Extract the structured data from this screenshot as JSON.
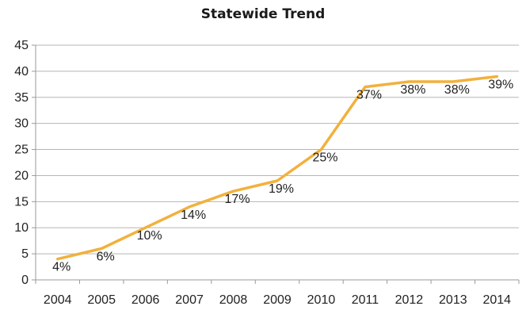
{
  "chart_data": {
    "type": "line",
    "title": "Statewide Trend",
    "xlabel": "",
    "ylabel": "",
    "categories": [
      "2004",
      "2005",
      "2006",
      "2007",
      "2008",
      "2009",
      "2010",
      "2011",
      "2012",
      "2013",
      "2014"
    ],
    "series": [
      {
        "name": "",
        "values": [
          4,
          6,
          10,
          14,
          17,
          19,
          25,
          37,
          38,
          38,
          39
        ],
        "labels": [
          "4%",
          "6%",
          "10%",
          "14%",
          "17%",
          "19%",
          "25%",
          "37%",
          "38%",
          "38%",
          "39%"
        ],
        "color": "#f2b13c"
      }
    ],
    "ylim": [
      0,
      45
    ],
    "yticks": [
      0,
      5,
      10,
      15,
      20,
      25,
      30,
      35,
      40,
      45
    ],
    "grid": true,
    "legend": "none"
  }
}
